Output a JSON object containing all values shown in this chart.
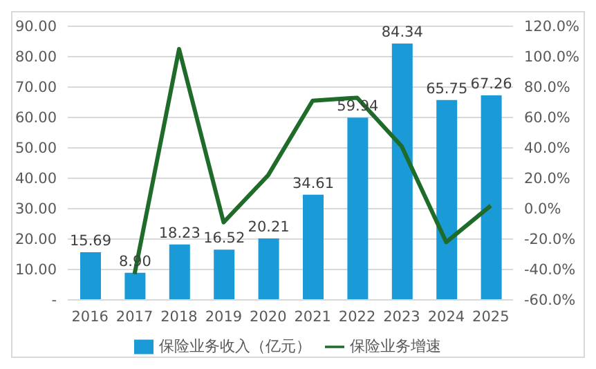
{
  "chart_data": {
    "type": "bar",
    "categories": [
      "2016",
      "2017",
      "2018",
      "2019",
      "2020",
      "2021",
      "2022",
      "2023",
      "2024",
      "2025"
    ],
    "series": [
      {
        "name": "保险业务收入（亿元）",
        "color": "#1a9bd7",
        "values": [
          15.69,
          8.9,
          18.23,
          16.52,
          20.21,
          34.61,
          59.94,
          84.34,
          65.75,
          67.26
        ],
        "value_labels": [
          "15.69",
          "8.90",
          "18.23",
          "16.52",
          "20.21",
          "34.61",
          "59.94",
          "84.34",
          "65.75",
          "67.26"
        ]
      },
      {
        "name": "保险业务增速",
        "type": "line",
        "axis": "y2",
        "color": "#1e6b2a",
        "marker": "none",
        "values": [
          null,
          -43,
          105,
          -9,
          22,
          71,
          73,
          41,
          -22,
          2
        ]
      }
    ],
    "ylim": [
      0,
      90
    ],
    "yticks": [
      {
        "value": 0,
        "label": "-"
      },
      {
        "value": 10,
        "label": "10.00"
      },
      {
        "value": 20,
        "label": "20.00"
      },
      {
        "value": 30,
        "label": "30.00"
      },
      {
        "value": 40,
        "label": "40.00"
      },
      {
        "value": 50,
        "label": "50.00"
      },
      {
        "value": 60,
        "label": "60.00"
      },
      {
        "value": 70,
        "label": "70.00"
      },
      {
        "value": 80,
        "label": "80.00"
      },
      {
        "value": 90,
        "label": "90.00"
      }
    ],
    "y2lim": [
      -60,
      120
    ],
    "y2ticks": [
      {
        "value": -60,
        "label": "-60.0%"
      },
      {
        "value": -40,
        "label": "-40.0%"
      },
      {
        "value": -20,
        "label": "-20.0%"
      },
      {
        "value": 0,
        "label": "0.0%"
      },
      {
        "value": 20,
        "label": "20.0%"
      },
      {
        "value": 40,
        "label": "40.0%"
      },
      {
        "value": 60,
        "label": "60.0%"
      },
      {
        "value": 80,
        "label": "80.0%"
      },
      {
        "value": 100,
        "label": "100.0%"
      },
      {
        "value": 120,
        "label": "120.0%"
      }
    ],
    "grid": "y",
    "legend": "bottom"
  }
}
